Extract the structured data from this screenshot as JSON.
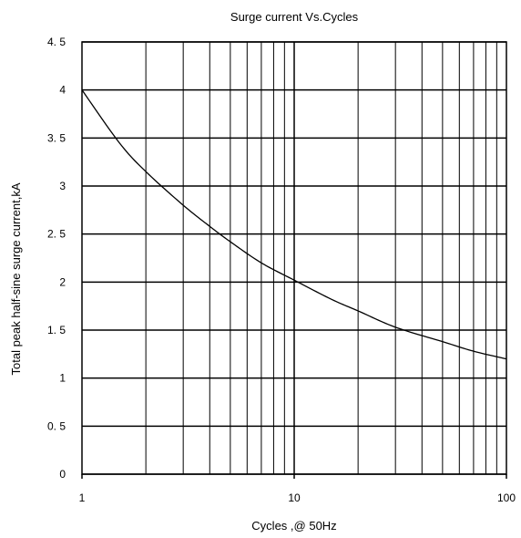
{
  "chart_data": {
    "type": "line",
    "title": "Surge current Vs.Cycles",
    "xlabel": "Cycles ,@ 50Hz",
    "ylabel": "Total peak half-sine surge current,kA",
    "x_scale": "log",
    "xlim": [
      1,
      100
    ],
    "ylim": [
      0,
      4.5
    ],
    "grid": true,
    "x_ticks": [
      "1",
      "10",
      "100"
    ],
    "y_ticks": [
      "0",
      "0. 5",
      "1",
      "1. 5",
      "2",
      "2. 5",
      "3",
      "3. 5",
      "4",
      "4. 5"
    ],
    "series": [
      {
        "x": [
          1,
          1.5,
          2,
          3,
          4,
          5,
          7,
          10,
          15,
          20,
          30,
          50,
          70,
          100
        ],
        "y": [
          4.0,
          3.45,
          3.15,
          2.8,
          2.58,
          2.42,
          2.2,
          2.02,
          1.82,
          1.7,
          1.53,
          1.38,
          1.28,
          1.2
        ]
      }
    ]
  },
  "colors": {
    "line": "#000000",
    "grid": "#000000",
    "background": "#ffffff"
  }
}
